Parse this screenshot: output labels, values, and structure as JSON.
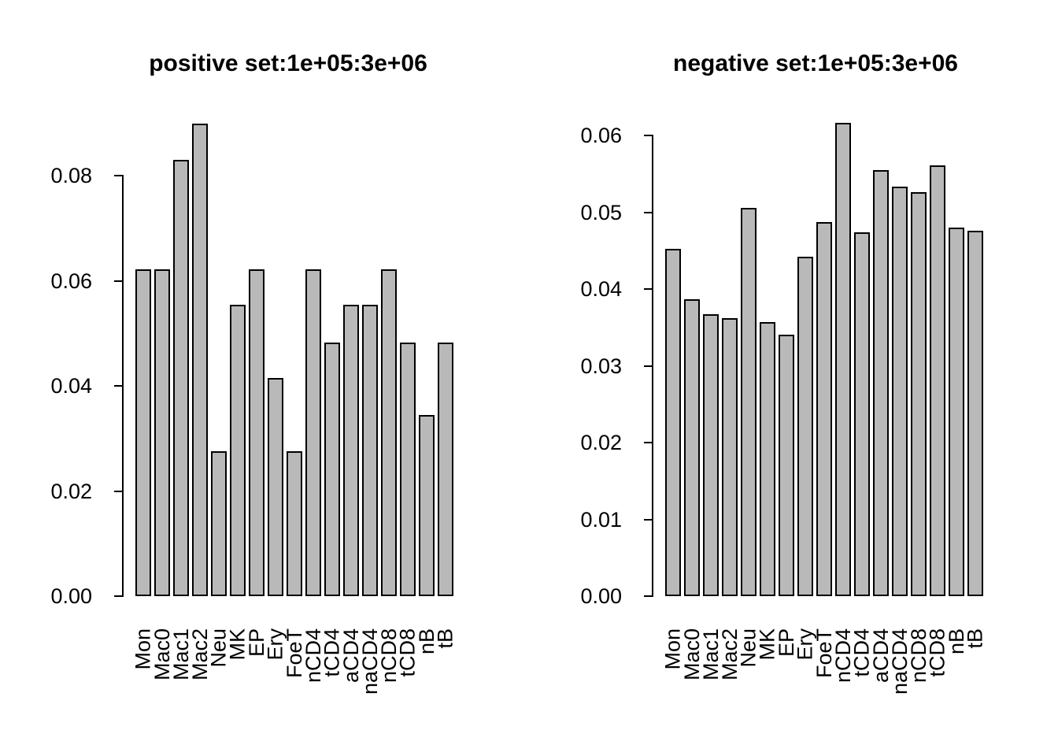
{
  "figure": {
    "background": "#ffffff",
    "text_color": "#000000"
  },
  "chart_data": [
    {
      "type": "bar",
      "title": "positive set:1e+05:3e+06",
      "xlabel": "",
      "ylabel": "",
      "grid": false,
      "legend": "none",
      "ylim": [
        0,
        0.09
      ],
      "ytick_values": [
        0,
        0.02,
        0.04,
        0.06,
        0.08
      ],
      "ytick_labels": [
        "0.00",
        "0.02",
        "0.04",
        "0.06",
        "0.08"
      ],
      "categories": [
        "Mon",
        "Mac0",
        "Mac1",
        "Mac2",
        "Neu",
        "MK",
        "EP",
        "Ery",
        "FoeT",
        "nCD4",
        "tCD4",
        "aCD4",
        "naCD4",
        "nCD8",
        "tCD8",
        "nB",
        "tB"
      ],
      "values": [
        0.0622,
        0.0622,
        0.083,
        0.0899,
        0.0276,
        0.0554,
        0.0622,
        0.0415,
        0.0276,
        0.0622,
        0.0483,
        0.0554,
        0.0554,
        0.0622,
        0.0483,
        0.0345,
        0.0483
      ],
      "bar_color": "#b9b9b9",
      "bar_border_color": "#000000",
      "axis_color": "#000000"
    },
    {
      "type": "bar",
      "title": "negative set:1e+05:3e+06",
      "xlabel": "",
      "ylabel": "",
      "grid": false,
      "legend": "none",
      "ylim": [
        0,
        0.062
      ],
      "ytick_values": [
        0,
        0.01,
        0.02,
        0.03,
        0.04,
        0.05,
        0.06
      ],
      "ytick_labels": [
        "0.00",
        "0.01",
        "0.02",
        "0.03",
        "0.04",
        "0.05",
        "0.06"
      ],
      "categories": [
        "Mon",
        "Mac0",
        "Mac1",
        "Mac2",
        "Neu",
        "MK",
        "EP",
        "Ery",
        "FoeT",
        "nCD4",
        "tCD4",
        "aCD4",
        "naCD4",
        "nCD8",
        "tCD8",
        "nB",
        "tB"
      ],
      "values": [
        0.0452,
        0.0387,
        0.0367,
        0.0362,
        0.0506,
        0.0357,
        0.0341,
        0.0442,
        0.0487,
        0.0616,
        0.0474,
        0.0555,
        0.0533,
        0.0526,
        0.0561,
        0.048,
        0.0476
      ],
      "bar_color": "#b9b9b9",
      "bar_border_color": "#000000",
      "axis_color": "#000000"
    }
  ]
}
